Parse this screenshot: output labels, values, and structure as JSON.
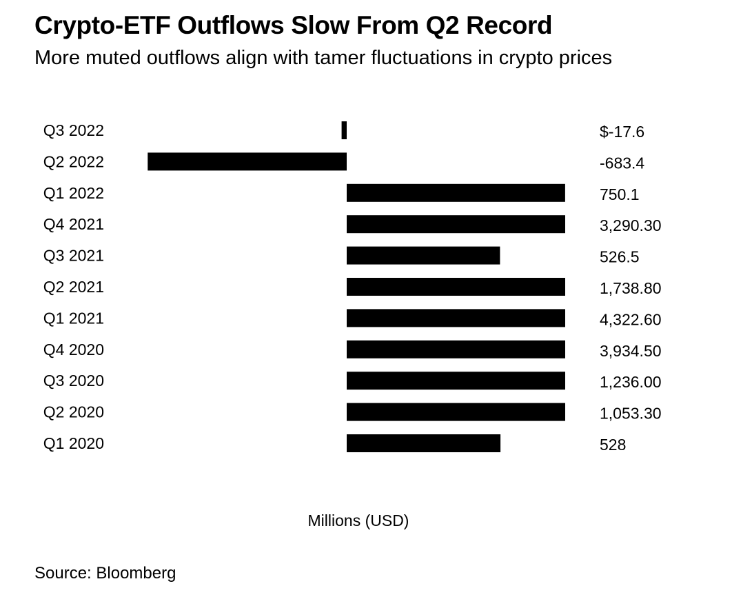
{
  "header": {
    "title": "Crypto-ETF Outflows Slow From Q2 Record",
    "subtitle": "More muted outflows align with tamer fluctuations in crypto prices"
  },
  "footer": {
    "source": "Source: Bloomberg"
  },
  "chart_data": {
    "type": "bar",
    "orientation": "horizontal",
    "title": "Crypto-ETF Outflows Slow From Q2 Record",
    "subtitle": "More muted outflows align with tamer fluctuations in crypto prices",
    "xlabel": "Millions (USD)",
    "ylabel": "",
    "categories": [
      "Q3 2022",
      "Q2 2022",
      "Q1 2022",
      "Q4 2021",
      "Q3 2021",
      "Q2 2021",
      "Q1 2021",
      "Q4 2020",
      "Q3 2020",
      "Q2 2020",
      "Q1 2020"
    ],
    "values": [
      -17.6,
      -683.4,
      750.1,
      3290.3,
      526.5,
      1738.8,
      4322.6,
      3934.5,
      1236.0,
      1053.3,
      528
    ],
    "value_labels": [
      "$-17.6",
      "-683.4",
      "750.1",
      "3,290.30",
      "526.5",
      "1,738.80",
      "4,322.60",
      "3,934.50",
      "1,236.00",
      "1,053.30",
      "528"
    ],
    "bar_color": "#000000",
    "grid": false,
    "legend": "none"
  }
}
